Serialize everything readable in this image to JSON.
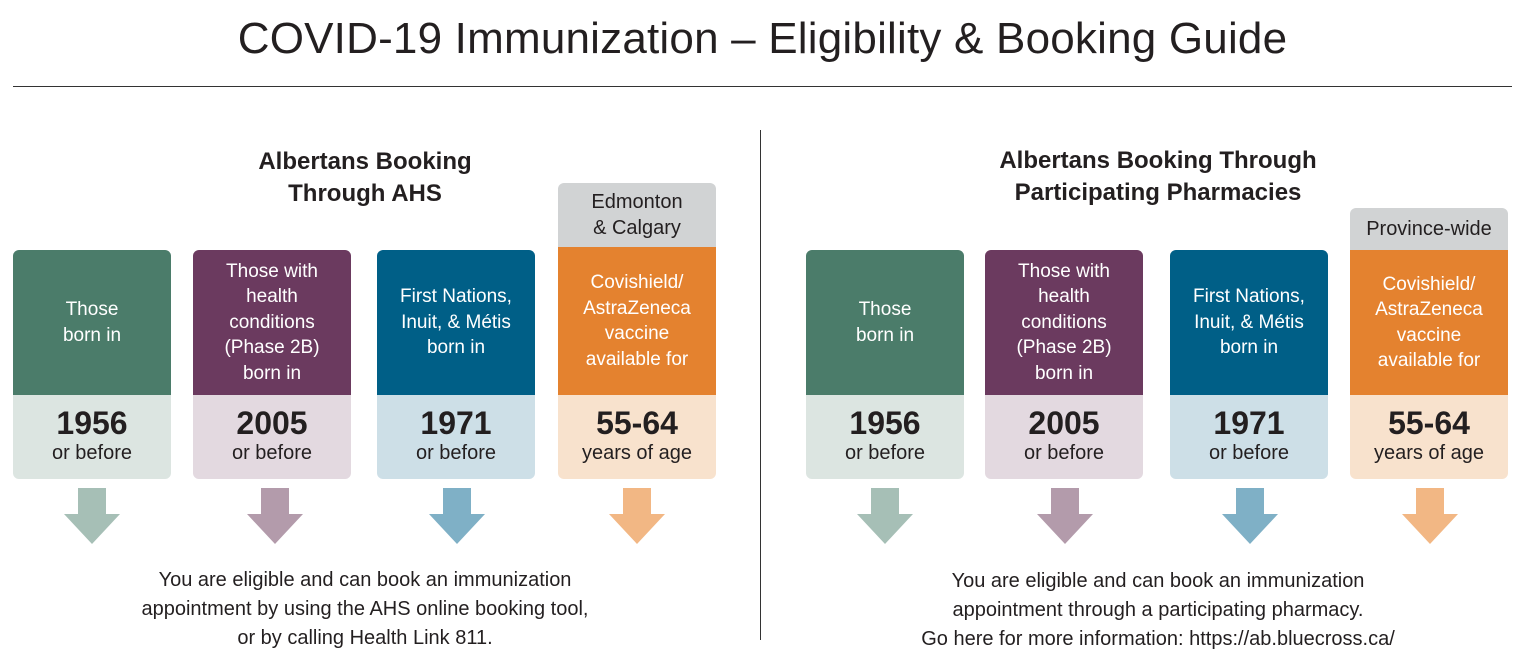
{
  "title": "COVID-19 Immunization – Eligibility & Booking Guide",
  "colors": {
    "green": "#4b7c6a",
    "purple": "#6b3a5f",
    "blue": "#005f87",
    "orange": "#e4822f",
    "green_arrow": "#a6bfb6",
    "purple_arrow": "#b39bab",
    "blue_arrow": "#7fb0c6",
    "orange_arrow": "#f2b784"
  },
  "left_panel": {
    "heading_line1": "Albertans Booking",
    "heading_line2": "Through AHS",
    "region_line1": "Edmonton",
    "region_line2": "& Calgary",
    "cards": [
      {
        "label_lines": [
          "Those",
          "born in"
        ],
        "value": "1956",
        "sub": "or before",
        "arrow_icon": "down-arrow-icon"
      },
      {
        "label_lines": [
          "Those with",
          "health",
          "conditions",
          "(Phase 2B)",
          "born in"
        ],
        "value": "2005",
        "sub": "or before",
        "arrow_icon": "down-arrow-icon"
      },
      {
        "label_lines": [
          "First Nations,",
          "Inuit, & Métis",
          "born in"
        ],
        "value": "1971",
        "sub": "or before",
        "arrow_icon": "down-arrow-icon"
      },
      {
        "label_lines": [
          "Covishield/",
          "AstraZeneca",
          "vaccine",
          "available for"
        ],
        "value": "55-64",
        "sub": "years of age",
        "arrow_icon": "down-arrow-icon"
      }
    ],
    "footer_lines": [
      "You are eligible and can book an immunization",
      "appointment by using the AHS online booking tool,",
      "or by calling Health Link 811."
    ]
  },
  "right_panel": {
    "heading_line1": "Albertans Booking Through",
    "heading_line2": "Participating Pharmacies",
    "region_line1": "Province-wide",
    "cards": [
      {
        "label_lines": [
          "Those",
          "born in"
        ],
        "value": "1956",
        "sub": "or before",
        "arrow_icon": "down-arrow-icon"
      },
      {
        "label_lines": [
          "Those with",
          "health",
          "conditions",
          "(Phase 2B)",
          "born in"
        ],
        "value": "2005",
        "sub": "or before",
        "arrow_icon": "down-arrow-icon"
      },
      {
        "label_lines": [
          "First Nations,",
          "Inuit, & Métis",
          "born in"
        ],
        "value": "1971",
        "sub": "or before",
        "arrow_icon": "down-arrow-icon"
      },
      {
        "label_lines": [
          "Covishield/",
          "AstraZeneca",
          "vaccine",
          "available for"
        ],
        "value": "55-64",
        "sub": "years of age",
        "arrow_icon": "down-arrow-icon"
      }
    ],
    "footer_lines": [
      "You are eligible and can book an immunization",
      "appointment through a participating pharmacy.",
      "Go here for more information: https://ab.bluecross.ca/"
    ]
  }
}
